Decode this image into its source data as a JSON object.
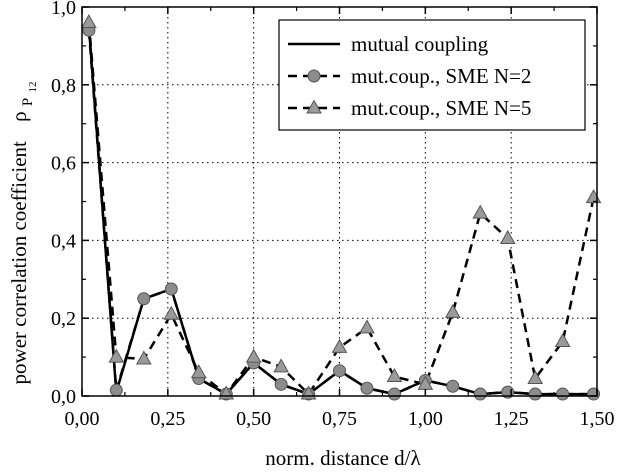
{
  "chart_data": {
    "type": "line",
    "xlabel": "norm. distance d/λ",
    "ylabel": "power correlation coefficient",
    "ylabel_symbol": "ρ",
    "ylabel_sub1": "P",
    "ylabel_sub2": "12",
    "xlim": [
      0.0,
      1.5
    ],
    "ylim": [
      0.0,
      1.0
    ],
    "x_ticks": [
      0.0,
      0.25,
      0.5,
      0.75,
      1.0,
      1.25,
      1.5
    ],
    "x_tick_labels": [
      "0,00",
      "0,25",
      "0,50",
      "0,75",
      "1,00",
      "1,25",
      "1,50"
    ],
    "y_ticks": [
      0.0,
      0.2,
      0.4,
      0.6,
      0.8,
      1.0
    ],
    "y_tick_labels": [
      "0,0",
      "0,2",
      "0,4",
      "0,6",
      "0,8",
      "1,0"
    ],
    "grid": "dotted",
    "legend_position": "top-right",
    "x": [
      0.02,
      0.1,
      0.18,
      0.26,
      0.34,
      0.42,
      0.5,
      0.58,
      0.66,
      0.75,
      0.83,
      0.91,
      1.0,
      1.08,
      1.16,
      1.24,
      1.32,
      1.4,
      1.49
    ],
    "series": [
      {
        "name": "mutual coupling",
        "style": "solid",
        "marker": "none",
        "values": [
          0.95,
          0.01,
          0.25,
          0.275,
          0.045,
          0.005,
          0.085,
          0.03,
          0.005,
          0.065,
          0.02,
          0.005,
          0.04,
          0.025,
          0.005,
          0.01,
          0.005,
          0.005,
          0.005
        ]
      },
      {
        "name": "mut.coup., SME N=2",
        "style": "dashed",
        "marker": "circle",
        "values": [
          0.94,
          0.015,
          0.25,
          0.275,
          0.045,
          0.005,
          0.085,
          0.03,
          0.005,
          0.065,
          0.02,
          0.005,
          0.04,
          0.025,
          0.005,
          0.01,
          0.005,
          0.005,
          0.005
        ]
      },
      {
        "name": "mut.coup., SME N=5",
        "style": "dashed",
        "marker": "triangle",
        "values": [
          0.96,
          0.1,
          0.095,
          0.21,
          0.06,
          0.005,
          0.1,
          0.075,
          0.005,
          0.125,
          0.175,
          0.05,
          0.03,
          0.215,
          0.47,
          0.405,
          0.045,
          0.14,
          0.51
        ]
      }
    ]
  }
}
